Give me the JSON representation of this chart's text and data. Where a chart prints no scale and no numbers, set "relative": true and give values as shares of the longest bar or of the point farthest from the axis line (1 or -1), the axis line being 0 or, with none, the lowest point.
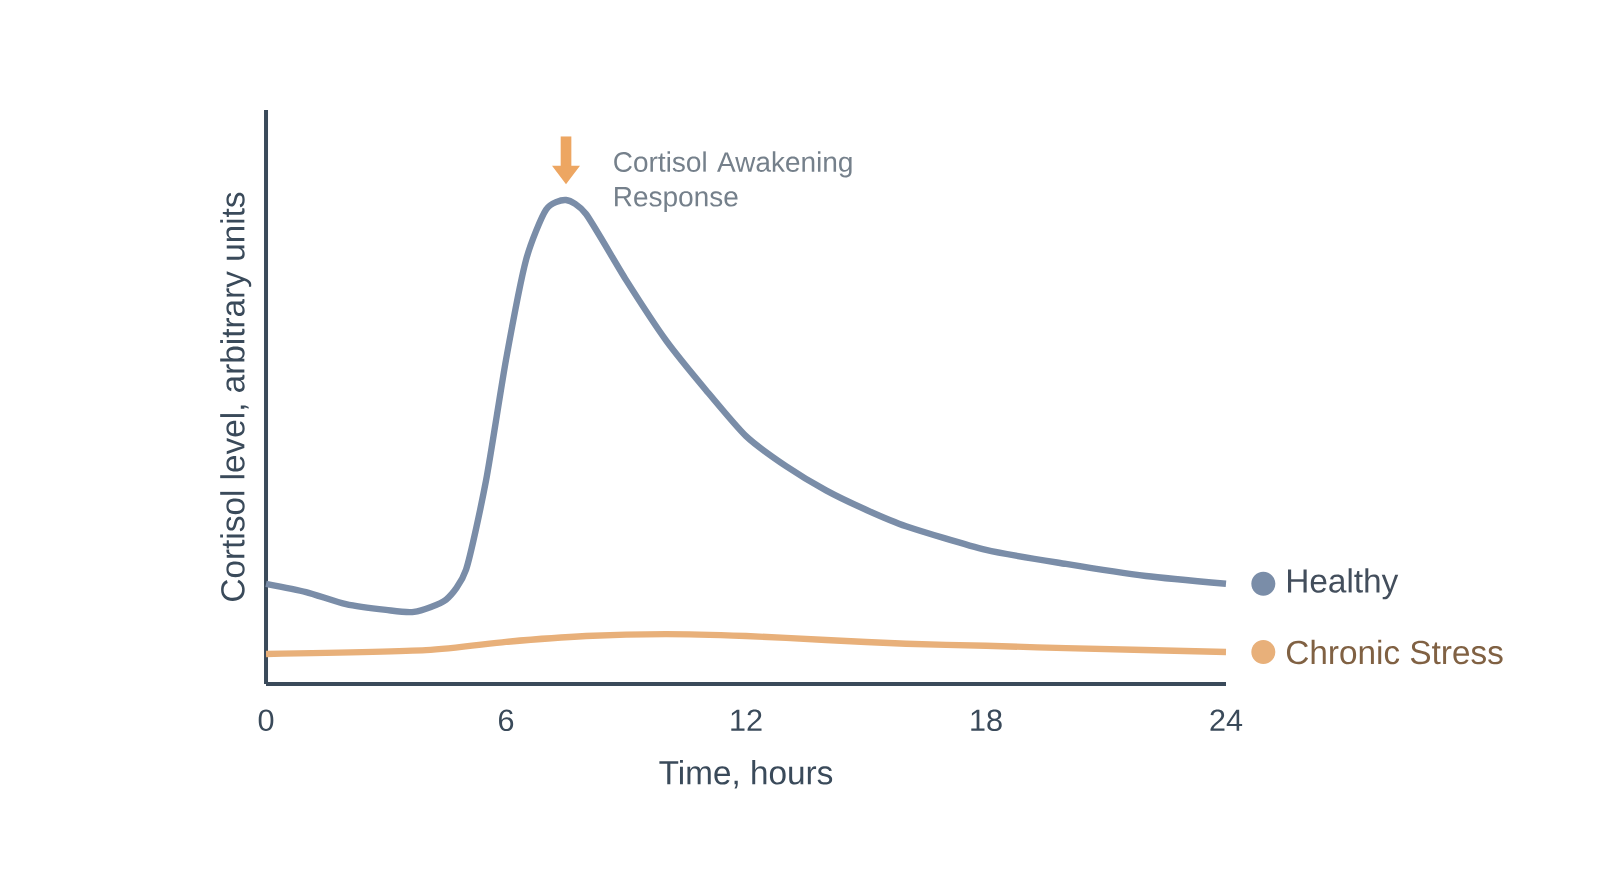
{
  "chart_data": {
    "type": "line",
    "relative": true,
    "xlabel": "Time, hours",
    "ylabel": "Cortisol level, arbitrary units",
    "x": [
      0,
      1,
      2,
      3,
      3.7,
      4.5,
      5,
      5.5,
      6,
      6.5,
      7,
      7.5,
      8,
      9,
      10,
      11,
      12,
      13,
      14,
      15,
      16,
      18,
      20,
      22,
      24
    ],
    "xlim": [
      0,
      24
    ],
    "xticks": [
      0,
      6,
      12,
      18,
      24
    ],
    "tick_labels": "x",
    "grid": false,
    "legend": "right",
    "marker": "none",
    "line_style": "solid",
    "series": [
      {
        "name": "Healthy",
        "color": "#7a8da8",
        "values": [
          0.207,
          0.19,
          0.165,
          0.153,
          0.149,
          0.174,
          0.236,
          0.42,
          0.67,
          0.876,
          0.98,
          1,
          0.971,
          0.835,
          0.71,
          0.607,
          0.512,
          0.45,
          0.4,
          0.36,
          0.326,
          0.277,
          0.248,
          0.223,
          0.207
        ]
      },
      {
        "name": "Chronic Stress",
        "color": "#e8b07a",
        "x": [
          0,
          4,
          6,
          8,
          10,
          12,
          14,
          16,
          18,
          20,
          24
        ],
        "values": [
          0.062,
          0.07,
          0.087,
          0.099,
          0.103,
          0.099,
          0.091,
          0.083,
          0.079,
          0.074,
          0.066
        ]
      }
    ],
    "annotations": [
      {
        "text": "Cortisol Awakening Response",
        "x": 7.5,
        "y": 1
      }
    ]
  }
}
